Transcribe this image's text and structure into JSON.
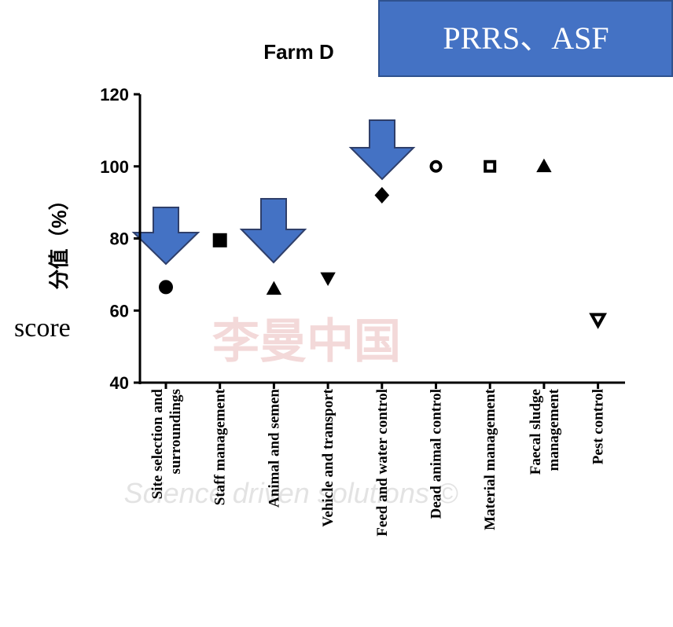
{
  "chart_data": {
    "type": "scatter",
    "title": "Farm D",
    "ylabel": "分值（%）",
    "annotations": [
      "PRRS、ASF",
      "score",
      "Science driven solutions ©",
      "李曼中国"
    ],
    "categories": [
      "Site selection and surroundings",
      "Staff management",
      "Animal and semen",
      "Vehicle and transport",
      "Feed and water control",
      "Dead animal control",
      "Material management",
      "Faecal sludge management",
      "Pest control"
    ],
    "values": [
      66.5,
      79.5,
      66,
      69,
      92,
      100,
      100,
      100,
      57.5
    ],
    "markers": [
      "circle",
      "square",
      "triangle-up",
      "triangle-down",
      "diamond",
      "circle-open",
      "square-open",
      "triangle-up",
      "triangle-down-open"
    ],
    "color": "#000000",
    "ylim": [
      40,
      120
    ],
    "yticks": [
      40,
      60,
      80,
      100,
      120
    ]
  }
}
